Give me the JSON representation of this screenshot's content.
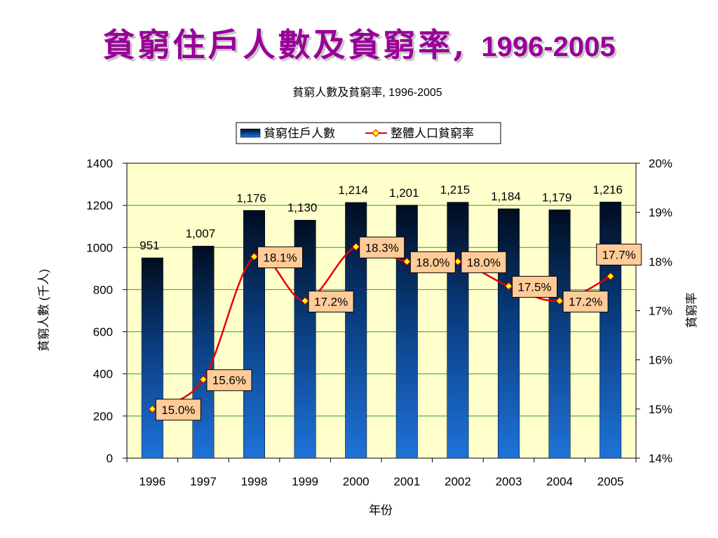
{
  "slide": {
    "title": "貧窮住戶人數及貧窮率,",
    "title_years": "1996-2005"
  },
  "chart_data": {
    "type": "bar",
    "title": "貧窮人數及貧窮率, 1996-2005",
    "xlabel": "年份",
    "ylabel": "貧窮人數 (千人)",
    "y2label": "貧窮率",
    "categories": [
      "1996",
      "1997",
      "1998",
      "1999",
      "2000",
      "2001",
      "2002",
      "2003",
      "2004",
      "2005"
    ],
    "ylim": [
      0,
      1400
    ],
    "yticks": [
      0,
      200,
      400,
      600,
      800,
      1000,
      1200,
      1400
    ],
    "y2lim": [
      14,
      20
    ],
    "y2ticks": [
      "14%",
      "15%",
      "16%",
      "17%",
      "18%",
      "19%",
      "20%"
    ],
    "grid": true,
    "legend_position": "top",
    "series": [
      {
        "name": "貧窮住戶人數",
        "type": "bar",
        "axis": "left",
        "values": [
          951,
          1007,
          1176,
          1130,
          1214,
          1201,
          1215,
          1184,
          1179,
          1216
        ],
        "labels": [
          "951",
          "1,007",
          "1,176",
          "1,130",
          "1,214",
          "1,201",
          "1,215",
          "1,184",
          "1,179",
          "1,216"
        ]
      },
      {
        "name": "整體人口貧窮率",
        "type": "line",
        "axis": "right",
        "values": [
          15.0,
          15.6,
          18.1,
          17.2,
          18.3,
          18.0,
          18.0,
          17.5,
          17.2,
          17.7
        ],
        "labels": [
          "15.0%",
          "15.6%",
          "18.1%",
          "17.2%",
          "18.3%",
          "18.0%",
          "18.0%",
          "17.5%",
          "17.2%",
          "17.7%"
        ]
      }
    ],
    "colors": {
      "plot_background": "#ffffcc",
      "gridline": "#339933",
      "bar_top": "#000d1f",
      "bar_bottom": "#1e73d9",
      "line": "#e60000",
      "marker_fill": "#ffff00",
      "label_box": "#ffcc99"
    }
  }
}
